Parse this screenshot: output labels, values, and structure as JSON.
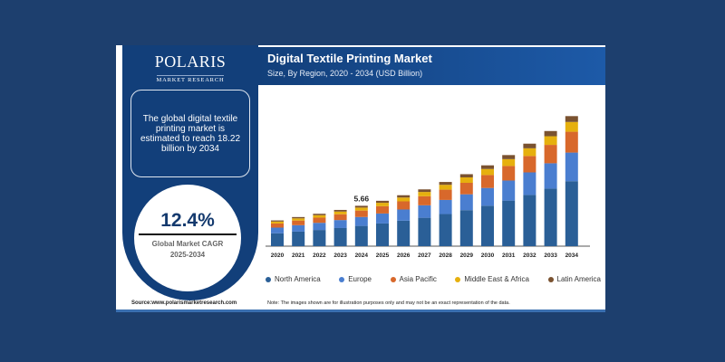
{
  "brand": {
    "name": "POLARIS",
    "sub": "MARKET RESEARCH"
  },
  "info": {
    "text": "The global digital textile printing market is estimated to reach 18.22 billion by 2034"
  },
  "cagr": {
    "value": "12.4%",
    "label": "Global Market CAGR",
    "period": "2025-2034"
  },
  "source": "Source:www.polarismarketresearch.com",
  "note": "Note: The images shown are for illustration purposes only and may not be an exact representation of the data.",
  "chart_data": {
    "type": "bar",
    "stacked": true,
    "title": "Digital Textile Printing Market",
    "subtitle": "Size, By Region, 2020 - 2034 (USD Billion)",
    "categories": [
      "2020",
      "2021",
      "2022",
      "2023",
      "2024",
      "2025",
      "2026",
      "2027",
      "2028",
      "2029",
      "2030",
      "2031",
      "2032",
      "2033",
      "2034"
    ],
    "series": [
      {
        "name": "North America",
        "color": "#2a5f97",
        "values": [
          1.81,
          2.04,
          2.27,
          2.54,
          2.84,
          3.18,
          3.57,
          3.98,
          4.5,
          5.05,
          5.67,
          6.39,
          7.18,
          8.07,
          9.11
        ]
      },
      {
        "name": "Europe",
        "color": "#4a7ed0",
        "values": [
          0.79,
          0.9,
          1.0,
          1.12,
          1.25,
          1.4,
          1.57,
          1.75,
          1.98,
          2.22,
          2.49,
          2.81,
          3.16,
          3.55,
          4.01
        ]
      },
      {
        "name": "Asia Pacific",
        "color": "#d8682b",
        "values": [
          0.58,
          0.65,
          0.73,
          0.81,
          0.9,
          1.02,
          1.14,
          1.27,
          1.44,
          1.61,
          1.81,
          2.04,
          2.3,
          2.58,
          2.92
        ]
      },
      {
        "name": "Middle East & Africa",
        "color": "#e6b00e",
        "values": [
          0.27,
          0.31,
          0.34,
          0.38,
          0.42,
          0.48,
          0.54,
          0.6,
          0.68,
          0.76,
          0.85,
          0.96,
          1.08,
          1.21,
          1.37
        ]
      },
      {
        "name": "Latin America",
        "color": "#7a5230",
        "values": [
          0.16,
          0.18,
          0.2,
          0.23,
          0.25,
          0.28,
          0.32,
          0.36,
          0.4,
          0.45,
          0.51,
          0.57,
          0.65,
          0.73,
          0.82
        ]
      }
    ],
    "annotations": [
      {
        "category": "2024",
        "text": "5.66"
      }
    ],
    "ylim": [
      0,
      19
    ],
    "grid": false,
    "legend": "bottom"
  }
}
